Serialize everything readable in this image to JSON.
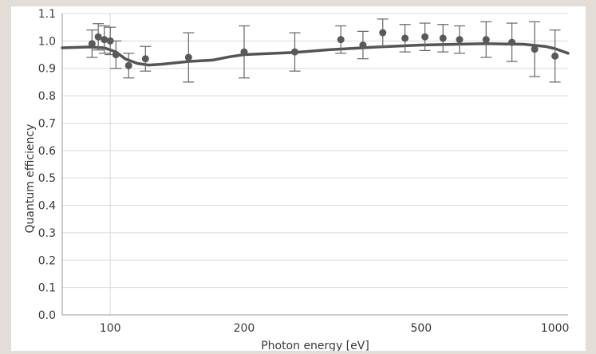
{
  "chart_data": {
    "type": "scatter",
    "title": "",
    "xlabel": "Photon energy [eV]",
    "ylabel": "Quantum efficiency",
    "xscale": "log",
    "xlim": [
      78,
      1070
    ],
    "ylim": [
      0.0,
      1.1
    ],
    "yticks": [
      0.0,
      0.1,
      0.2,
      0.3,
      0.4,
      0.5,
      0.6,
      0.7,
      0.8,
      0.9,
      1.0,
      1.1
    ],
    "ytick_labels": [
      "0.0",
      "0.1",
      "0.2",
      "0.3",
      "0.4",
      "0.5",
      "0.6",
      "0.7",
      "0.8",
      "0.9",
      "1.0",
      "1.1"
    ],
    "xticks": [
      100,
      200,
      500,
      1000
    ],
    "xtick_labels": [
      "100",
      "200",
      "500",
      "1000"
    ],
    "grid": "horizontal",
    "legend": "none",
    "colors": {
      "markers": "#595959",
      "curve": "#545454",
      "grid": "#d9d9d9",
      "axis": "#9a9a9a"
    },
    "series": [
      {
        "kind": "measured",
        "points": [
          {
            "x": 91,
            "y": 0.99,
            "err": 0.05
          },
          {
            "x": 94,
            "y": 1.015,
            "err": 0.048
          },
          {
            "x": 97,
            "y": 1.005,
            "err": 0.05
          },
          {
            "x": 100,
            "y": 1.0,
            "err": 0.05
          },
          {
            "x": 103,
            "y": 0.95,
            "err": 0.05
          },
          {
            "x": 110,
            "y": 0.91,
            "err": 0.045
          },
          {
            "x": 120,
            "y": 0.935,
            "err": 0.045
          },
          {
            "x": 150,
            "y": 0.94,
            "err": 0.09
          },
          {
            "x": 200,
            "y": 0.96,
            "err": 0.095
          },
          {
            "x": 260,
            "y": 0.96,
            "err": 0.07
          },
          {
            "x": 330,
            "y": 1.005,
            "err": 0.05
          },
          {
            "x": 370,
            "y": 0.985,
            "err": 0.05
          },
          {
            "x": 410,
            "y": 1.03,
            "err": 0.05
          },
          {
            "x": 460,
            "y": 1.01,
            "err": 0.05
          },
          {
            "x": 510,
            "y": 1.015,
            "err": 0.05
          },
          {
            "x": 560,
            "y": 1.01,
            "err": 0.05
          },
          {
            "x": 610,
            "y": 1.005,
            "err": 0.05
          },
          {
            "x": 700,
            "y": 1.005,
            "err": 0.065
          },
          {
            "x": 800,
            "y": 0.995,
            "err": 0.07
          },
          {
            "x": 900,
            "y": 0.97,
            "err": 0.1
          },
          {
            "x": 1000,
            "y": 0.945,
            "err": 0.095
          }
        ]
      },
      {
        "kind": "model",
        "points": [
          {
            "x": 78,
            "y": 0.975
          },
          {
            "x": 90,
            "y": 0.978
          },
          {
            "x": 97,
            "y": 0.975
          },
          {
            "x": 103,
            "y": 0.96
          },
          {
            "x": 108,
            "y": 0.935
          },
          {
            "x": 115,
            "y": 0.918
          },
          {
            "x": 122,
            "y": 0.912
          },
          {
            "x": 130,
            "y": 0.915
          },
          {
            "x": 150,
            "y": 0.925
          },
          {
            "x": 170,
            "y": 0.93
          },
          {
            "x": 185,
            "y": 0.942
          },
          {
            "x": 200,
            "y": 0.95
          },
          {
            "x": 260,
            "y": 0.958
          },
          {
            "x": 310,
            "y": 0.968
          },
          {
            "x": 400,
            "y": 0.978
          },
          {
            "x": 500,
            "y": 0.985
          },
          {
            "x": 600,
            "y": 0.988
          },
          {
            "x": 700,
            "y": 0.99
          },
          {
            "x": 850,
            "y": 0.988
          },
          {
            "x": 950,
            "y": 0.98
          },
          {
            "x": 1000,
            "y": 0.972
          },
          {
            "x": 1040,
            "y": 0.962
          },
          {
            "x": 1070,
            "y": 0.955
          }
        ]
      }
    ]
  }
}
